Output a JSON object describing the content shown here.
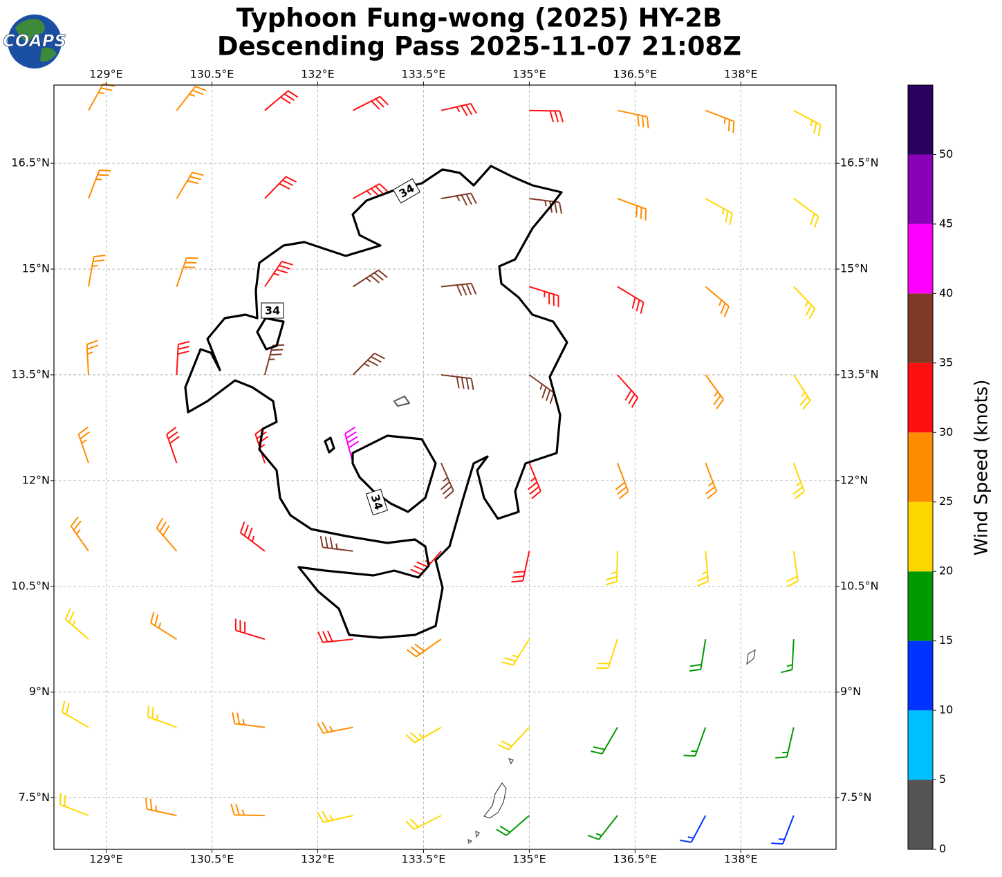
{
  "chart_data": {
    "type": "barbs",
    "title": "Typhoon Fung-wong (2025) HY-2B",
    "subtitle": "Descending Pass 2025-11-07 21:08Z",
    "logo_text": "COAPS",
    "xlim": [
      128.26,
      139.35
    ],
    "ylim": [
      6.77,
      17.61
    ],
    "xticks": [
      {
        "value": 129,
        "label": "129°E"
      },
      {
        "value": 130.5,
        "label": "130.5°E"
      },
      {
        "value": 132,
        "label": "132°E"
      },
      {
        "value": 133.5,
        "label": "133.5°E"
      },
      {
        "value": 135,
        "label": "135°E"
      },
      {
        "value": 136.5,
        "label": "136.5°E"
      },
      {
        "value": 138,
        "label": "138°E"
      }
    ],
    "yticks": [
      {
        "value": 7.5,
        "label": "7.5°N"
      },
      {
        "value": 9,
        "label": "9°N"
      },
      {
        "value": 10.5,
        "label": "10.5°N"
      },
      {
        "value": 12,
        "label": "12°N"
      },
      {
        "value": 13.5,
        "label": "13.5°N"
      },
      {
        "value": 15,
        "label": "15°N"
      },
      {
        "value": 16.5,
        "label": "16.5°N"
      }
    ],
    "grid": true,
    "contour": {
      "level": 34,
      "color": "#000000"
    },
    "barbs": {
      "lon": [
        128.75,
        130,
        131.25,
        132.5,
        133.75,
        135,
        136.25,
        137.5,
        138.75
      ],
      "lat": [
        17.25,
        16,
        14.75,
        13.5,
        12.25,
        11,
        9.75,
        8.5,
        7.25
      ],
      "speed": [
        [
          27,
          27,
          30,
          32,
          33,
          31,
          28,
          25,
          23
        ],
        [
          27,
          28,
          31,
          34,
          36,
          35,
          29,
          24,
          22
        ],
        [
          27,
          29,
          33,
          36,
          38,
          34,
          30,
          26,
          23
        ],
        [
          26,
          30,
          36,
          37,
          38,
          37,
          31,
          27,
          24
        ],
        [
          26,
          31,
          34,
          41,
          37,
          34,
          29,
          26,
          24
        ],
        [
          26,
          29,
          33,
          36,
          34,
          30,
          24,
          23,
          22
        ],
        [
          24,
          27,
          31,
          32,
          28,
          24,
          21,
          18,
          17
        ],
        [
          22,
          24,
          27,
          27,
          24,
          21,
          18,
          16,
          16
        ],
        [
          22,
          25,
          26,
          24,
          22,
          19,
          16,
          14,
          13
        ]
      ],
      "direction": [
        [
          29,
          38,
          50,
          63,
          77,
          91,
          102,
          111,
          118
        ],
        [
          21,
          31,
          44,
          61,
          80,
          97,
          110,
          119,
          126
        ],
        [
          10,
          19,
          34,
          57,
          84,
          107,
          121,
          130,
          136
        ],
        [
          357,
          3,
          15,
          45,
          97,
          126,
          138,
          144,
          147
        ],
        [
          341,
          341,
          342,
          345,
          156,
          158,
          159,
          159,
          160
        ],
        [
          325,
          319,
          307,
          277,
          221,
          192,
          181,
          175,
          172
        ],
        [
          311,
          302,
          287,
          264,
          235,
          212,
          198,
          189,
          183
        ],
        [
          300,
          290,
          277,
          259,
          240,
          223,
          210,
          200,
          193
        ],
        [
          291,
          282,
          271,
          257,
          243,
          229,
          218,
          208,
          201
        ]
      ]
    },
    "colorbar": {
      "label": "Wind Speed (knots)",
      "bounds": [
        0,
        5,
        10,
        15,
        20,
        25,
        30,
        35,
        40,
        45,
        50,
        55
      ],
      "colors": [
        "#555555",
        "#00bfff",
        "#0033ff",
        "#009900",
        "#ffd700",
        "#ff8c00",
        "#ff1010",
        "#7f3a26",
        "#ff00ff",
        "#8a00b8",
        "#2a0060"
      ],
      "ticks": [
        0,
        5,
        10,
        15,
        20,
        25,
        30,
        35,
        40,
        45,
        50
      ]
    }
  }
}
